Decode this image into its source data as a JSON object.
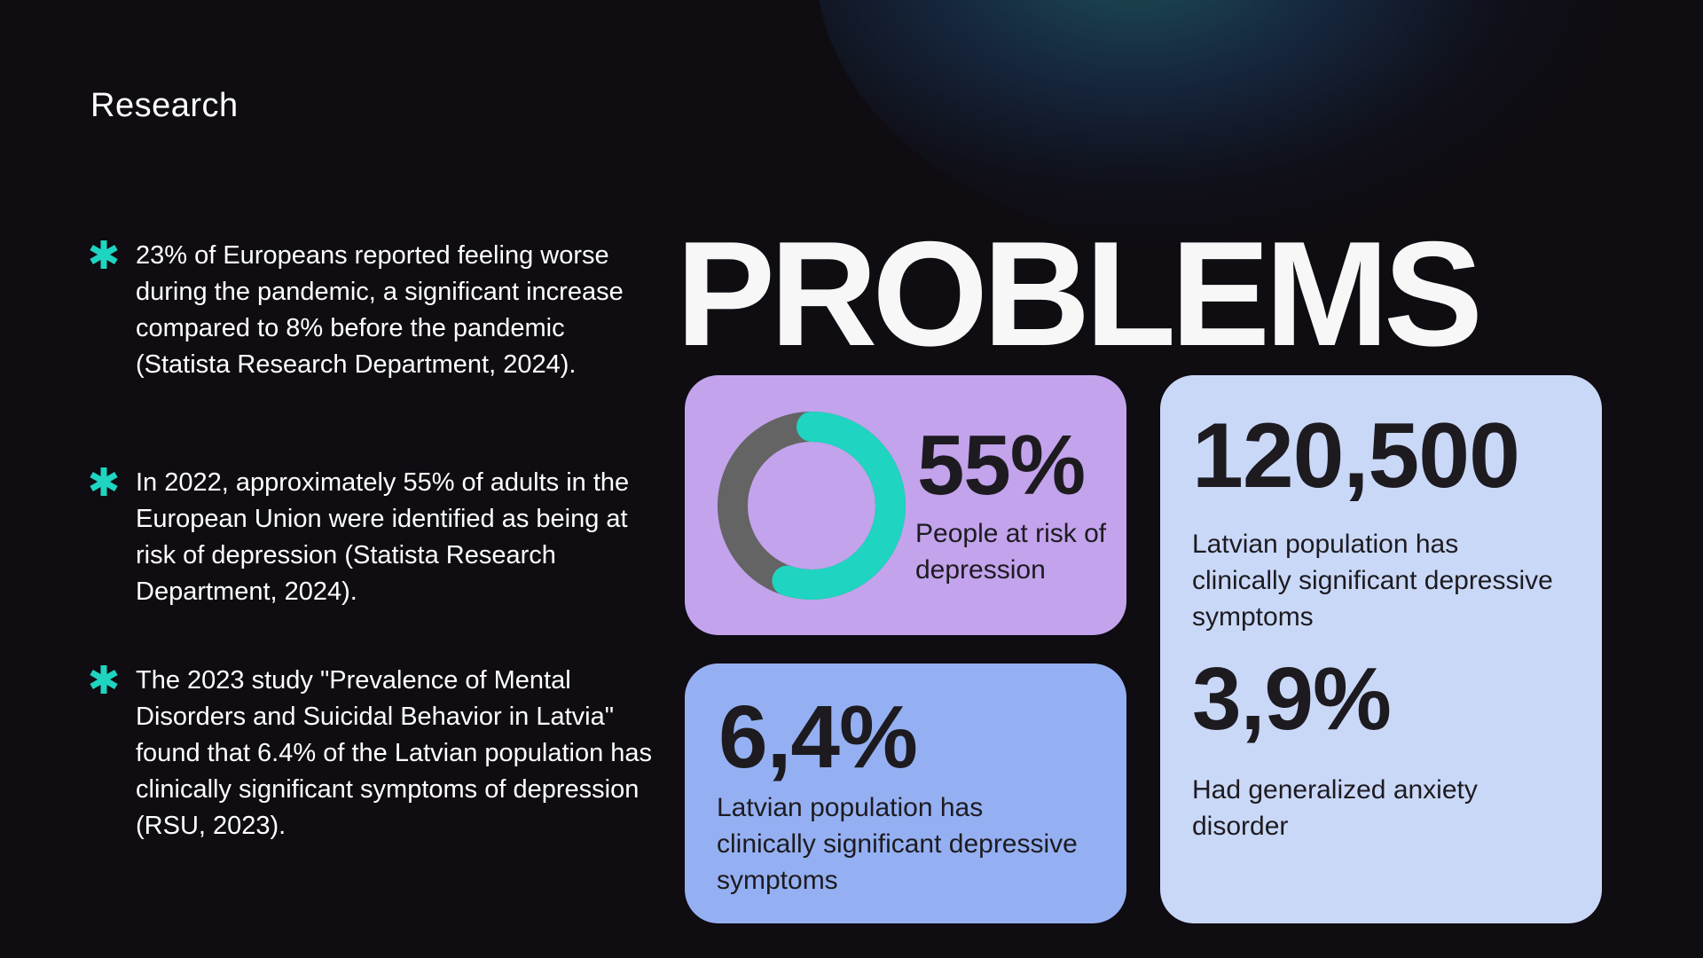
{
  "header": {
    "section_label": "Research"
  },
  "headline": "PROBLEMS",
  "colors": {
    "accent": "#1fd4c0",
    "background": "#0f0c12",
    "card_risk": "#c2a3ec",
    "card_latvia": "#95b0f2",
    "card_population": "#cad8f8",
    "donut_track": "#646464"
  },
  "bullets": {
    "icon": "asterisk-icon",
    "items": [
      {
        "text": "23% of Europeans reported feeling worse during the pandemic, a significant increase compared to 8% before the pandemic (Statista Research Department, 2024)."
      },
      {
        "text": "In 2022, approximately 55% of adults in the European Union were identified as being at risk of depression (Statista Research Department, 2024)."
      },
      {
        "text": "The 2023 study \"Prevalence of Mental Disorders and Suicidal Behavior in Latvia\" found that 6.4% of the Latvian population has clinically significant symptoms of depression (RSU, 2023)."
      }
    ]
  },
  "stats": {
    "risk": {
      "value": "55%",
      "label": "People at risk of depression",
      "donut_fraction": 0.55
    },
    "latvia": {
      "value": "6,4%",
      "label": "Latvian population has clinically significant depressive symptoms"
    },
    "population": {
      "value": "120,500",
      "label": "Latvian population has clinically significant depressive symptoms"
    },
    "anxiety": {
      "value": "3,9%",
      "label": "Had generalized anxiety disorder"
    }
  }
}
